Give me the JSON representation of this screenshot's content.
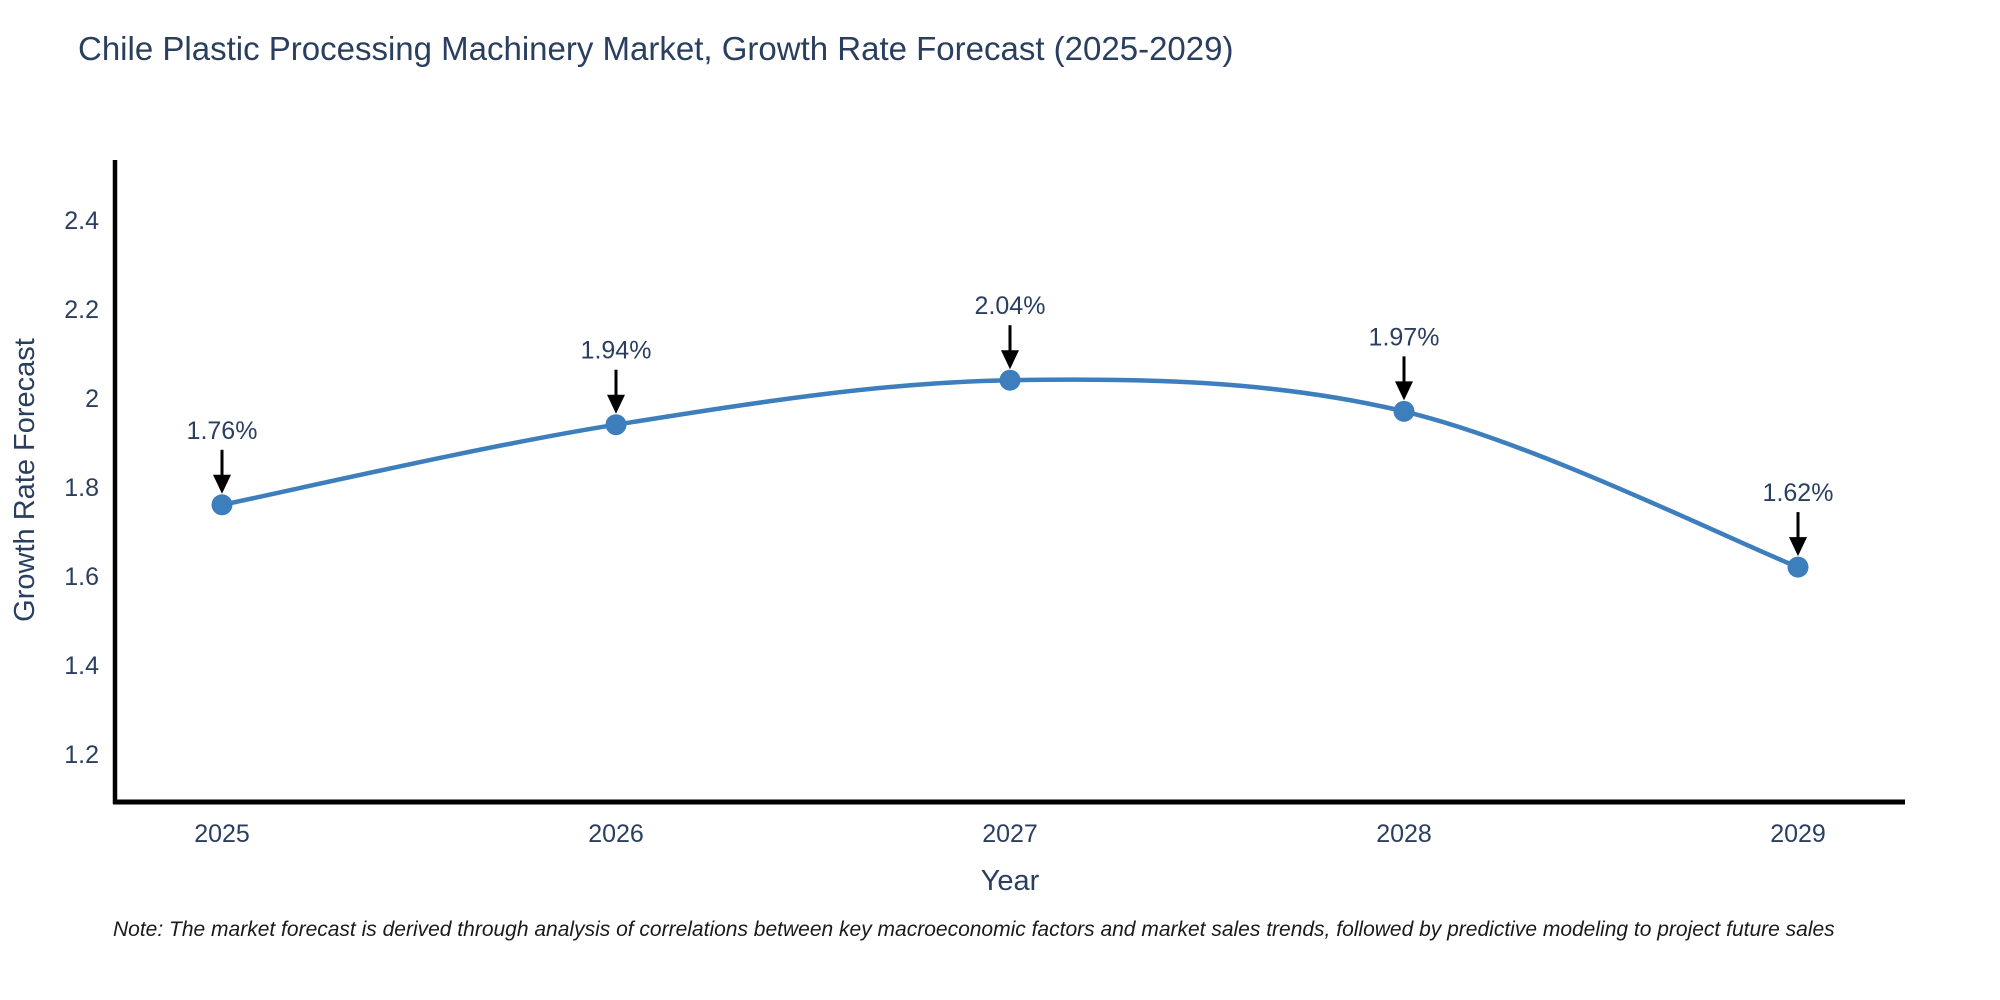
{
  "page": {
    "background": "#ffffff"
  },
  "chart_data": {
    "type": "line",
    "title": "Chile Plastic Processing Machinery Market, Growth Rate Forecast (2025-2029)",
    "xlabel": "Year",
    "ylabel": "Growth Rate Forecast",
    "categories": [
      "2025",
      "2026",
      "2027",
      "2028",
      "2029"
    ],
    "values": [
      1.76,
      1.94,
      2.04,
      1.97,
      1.62
    ],
    "point_labels": [
      "1.76%",
      "1.94%",
      "2.04%",
      "1.97%",
      "1.62%"
    ],
    "y_ticks": [
      "2.4",
      "2.2",
      "2",
      "1.8",
      "1.6",
      "1.4",
      "1.2"
    ],
    "y_tick_values": [
      2.4,
      2.2,
      2.0,
      1.8,
      1.6,
      1.4,
      1.2
    ],
    "ylim": [
      1.1,
      2.53
    ],
    "line_shape": "spline",
    "grid": false,
    "legend": "none",
    "colors": {
      "line": "#3d7ebd",
      "marker": "#3d7ebd",
      "axis": "#000000",
      "text": "#2a3f5f",
      "annotation_arrow": "#000000",
      "note_text": "#1a1a1a"
    },
    "note": "Note: The market forecast is derived through analysis of correlations between key macroeconomic factors and market sales trends, followed by predictive modeling to project future sales"
  }
}
